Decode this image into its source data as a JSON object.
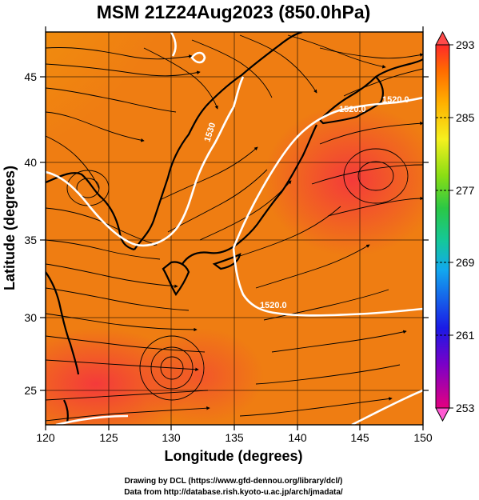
{
  "title": "MSM 21Z24Aug2023 (850.0hPa)",
  "x_axis": {
    "label": "Longitude (degrees)",
    "ticks": [
      "120",
      "125",
      "130",
      "135",
      "140",
      "145",
      "150"
    ],
    "range": [
      120,
      150
    ]
  },
  "y_axis": {
    "label": "Latitude  (degrees)",
    "ticks": [
      "25",
      "30",
      "35",
      "40",
      "45"
    ],
    "range": [
      22.4,
      47.6
    ]
  },
  "colorbar": {
    "ticks": [
      "293",
      "285",
      "277",
      "269",
      "261",
      "253"
    ],
    "range": [
      253,
      293
    ],
    "colors": [
      "#e4007f",
      "#1a1ae6",
      "#12a8ee",
      "#14c89a",
      "#5fd21e",
      "#dff01e",
      "#ffb000",
      "#ff6a00",
      "#ff3030"
    ]
  },
  "contour_labels": [
    "1520.0",
    "1520.0",
    "1530",
    "1520.0"
  ],
  "credits": {
    "line1": "Drawing by DCL (https://www.gfd-dennou.org/library/dcl/)",
    "line2": "Data from http://database.rish.kyoto-u.ac.jp/arch/jmadata/"
  }
}
